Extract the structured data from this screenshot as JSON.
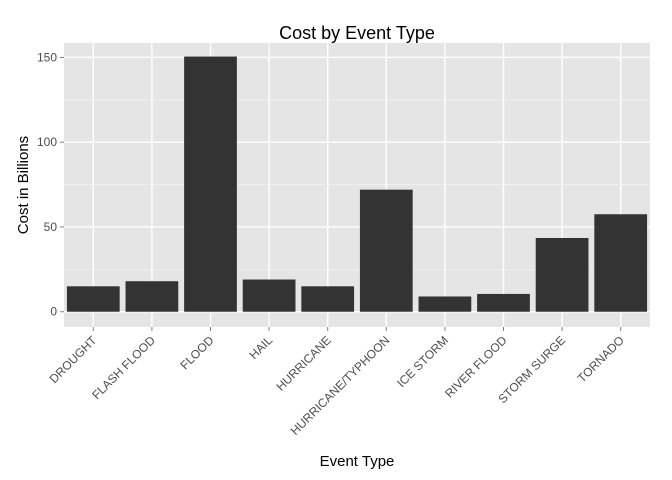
{
  "chart_data": {
    "type": "bar",
    "title": "Cost by Event Type",
    "xlabel": "Event Type",
    "ylabel": "Cost in Billions",
    "categories": [
      "DROUGHT",
      "FLASH FLOOD",
      "FLOOD",
      "HAIL",
      "HURRICANE",
      "HURRICANE/TYPHOON",
      "ICE STORM",
      "RIVER FLOOD",
      "STORM SURGE",
      "TORNADO"
    ],
    "values": [
      15,
      18,
      150.5,
      19,
      15,
      72,
      9,
      10.5,
      43.5,
      57.5
    ],
    "ylim": [
      -9,
      158.5
    ],
    "yticks": [
      0,
      50,
      100,
      150
    ],
    "grid": true,
    "legend": "none",
    "colors": {
      "bar": "#333333",
      "panel": "#e5e5e5",
      "grid_major": "#ffffff",
      "grid_minor": "#f2f2f2"
    }
  }
}
